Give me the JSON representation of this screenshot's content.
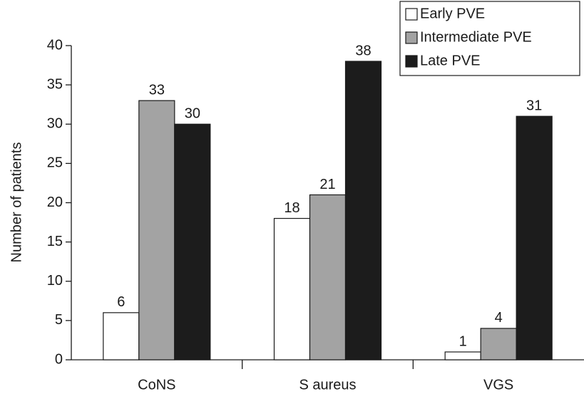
{
  "chart_data": {
    "type": "bar",
    "ylabel": "Number of patients",
    "categories": [
      "CoNS",
      "S aureus",
      "VGS"
    ],
    "series": [
      {
        "name": "Early PVE",
        "color": "#ffffff",
        "values": [
          6,
          18,
          1
        ]
      },
      {
        "name": "Intermediate PVE",
        "color": "#a3a3a3",
        "values": [
          33,
          21,
          4
        ]
      },
      {
        "name": "Late PVE",
        "color": "#1c1c1c",
        "values": [
          30,
          38,
          31
        ]
      }
    ],
    "ylim": [
      0,
      40
    ],
    "yticks": [
      0,
      5,
      10,
      15,
      20,
      25,
      30,
      35,
      40
    ],
    "grid": false,
    "legend": "upper right"
  }
}
